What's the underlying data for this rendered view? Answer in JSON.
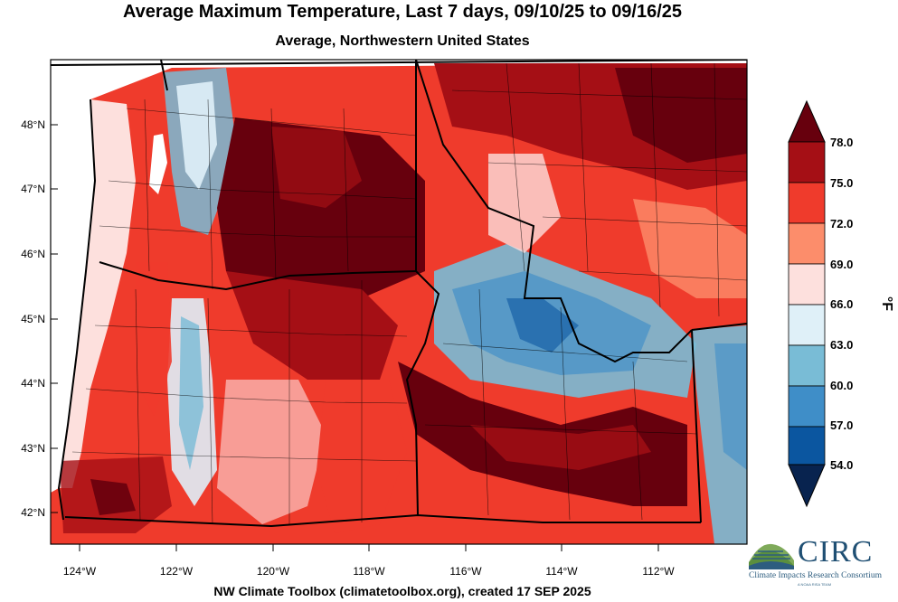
{
  "header": {
    "title": "Average Maximum Temperature, Last 7 days, 09/10/25 to 09/16/25",
    "subtitle": "Average, Northwestern United States"
  },
  "footer": {
    "credit": "NW Climate Toolbox (climatetoolbox.org), created 17 SEP 2025"
  },
  "map": {
    "lat_ticks": [
      "48°N",
      "47°N",
      "46°N",
      "45°N",
      "44°N",
      "43°N",
      "42°N"
    ],
    "lon_ticks": [
      "124°W",
      "122°W",
      "120°W",
      "118°W",
      "116°W",
      "114°W",
      "112°W"
    ]
  },
  "colorbar": {
    "unit": "°F",
    "labels": [
      "78.0",
      "75.0",
      "72.0",
      "69.0",
      "66.0",
      "63.0",
      "60.0",
      "57.0",
      "54.0"
    ],
    "colors": [
      "#67000d",
      "#a50f15",
      "#ef3b2c",
      "#fc8d6b",
      "#fde0dd",
      "#dff0f8",
      "#79bcd6",
      "#3f8ec8",
      "#0b56a0",
      "#08234f"
    ]
  },
  "logo": {
    "name": "CIRC",
    "full_name": "Climate Impacts Research Consortium",
    "tagline": "A NOAA RISA TEAM"
  }
}
